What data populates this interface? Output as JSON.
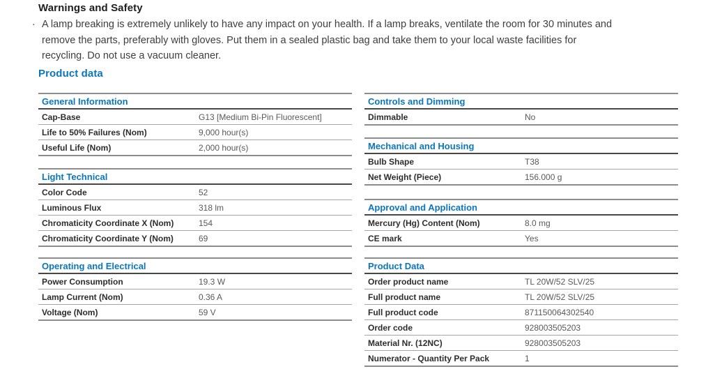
{
  "warnings": {
    "heading": "Warnings and Safety",
    "bullet_char": "·",
    "lines": [
      "A lamp breaking is extremely unlikely to have any impact on your health. If a lamp breaks, ventilate the room for 30 minutes and",
      "remove the parts, preferably with gloves. Put them in a sealed plastic bag and take them to your local waste facilities for",
      "recycling. Do not use a vacuum cleaner."
    ]
  },
  "product_data_heading": "Product data",
  "colors": {
    "accent_blue": "#0b76bc",
    "label_text": "#2d2d2d",
    "value_text": "#595959",
    "table_top_border": "#8d8d8d",
    "section_underline": "#474747",
    "row_divider": "#a5a5a5"
  },
  "columns": {
    "left": [
      {
        "title": "General Information",
        "rows": [
          {
            "label": "Cap-Base",
            "value": "G13 [Medium Bi-Pin Fluorescent]"
          },
          {
            "label": "Life to 50% Failures (Nom)",
            "value": "9,000 hour(s)"
          },
          {
            "label": "Useful Life (Nom)",
            "value": "2,000 hour(s)"
          }
        ]
      },
      {
        "title": "Light Technical",
        "rows": [
          {
            "label": "Color Code",
            "value": "52"
          },
          {
            "label": "Luminous Flux",
            "value": "318 lm"
          },
          {
            "label": "Chromaticity Coordinate X (Nom)",
            "value": "154"
          },
          {
            "label": "Chromaticity Coordinate Y (Nom)",
            "value": "69"
          }
        ]
      },
      {
        "title": "Operating and Electrical",
        "rows": [
          {
            "label": "Power Consumption",
            "value": "19.3 W"
          },
          {
            "label": "Lamp Current (Nom)",
            "value": "0.36 A"
          },
          {
            "label": "Voltage (Nom)",
            "value": "59 V"
          }
        ]
      }
    ],
    "right": [
      {
        "title": "Controls and Dimming",
        "rows": [
          {
            "label": "Dimmable",
            "value": "No"
          }
        ]
      },
      {
        "title": "Mechanical and Housing",
        "rows": [
          {
            "label": "Bulb Shape",
            "value": "T38"
          },
          {
            "label": "Net Weight (Piece)",
            "value": "156.000 g"
          }
        ]
      },
      {
        "title": "Approval and Application",
        "rows": [
          {
            "label": "Mercury (Hg) Content (Nom)",
            "value": "8.0 mg"
          },
          {
            "label": "CE mark",
            "value": "Yes"
          }
        ]
      },
      {
        "title": "Product Data",
        "rows": [
          {
            "label": "Order product name",
            "value": "TL 20W/52 SLV/25"
          },
          {
            "label": "Full product name",
            "value": "TL 20W/52 SLV/25"
          },
          {
            "label": "Full product code",
            "value": "871150064302540"
          },
          {
            "label": "Order code",
            "value": "928003505203"
          },
          {
            "label": "Material Nr. (12NC)",
            "value": "928003505203"
          },
          {
            "label": "Numerator - Quantity Per Pack",
            "value": "1"
          }
        ]
      }
    ]
  }
}
